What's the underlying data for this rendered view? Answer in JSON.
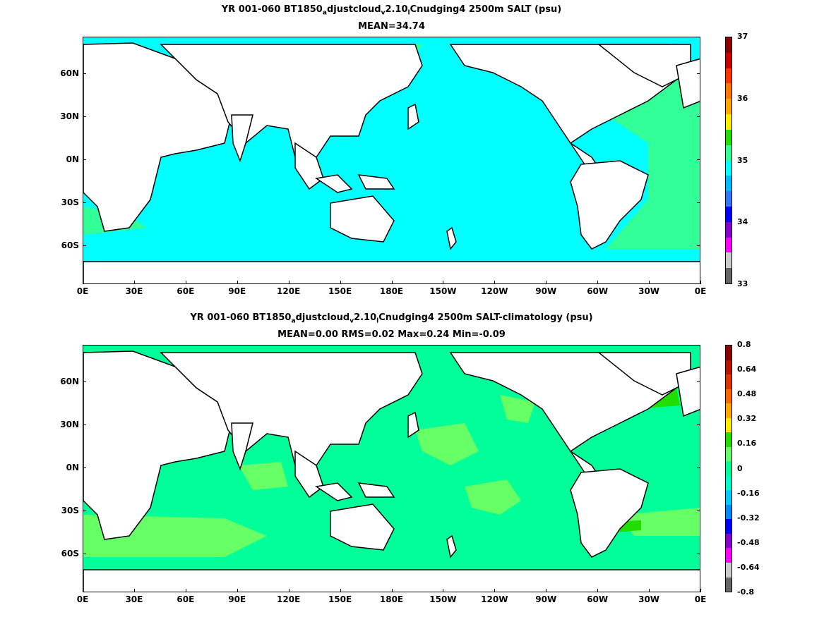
{
  "panels": [
    {
      "title_parts": [
        "YR 001-060 BT1850",
        "a",
        "djustcloud",
        "v",
        "2.10",
        "l",
        "Cnudging4 2500m SALT (psu)"
      ],
      "subtitle": "MEAN=34.74",
      "ocean_color": "#00ffff",
      "secondary_color": "#33ff99",
      "colorbar": {
        "colors": [
          "#8b0000",
          "#cc0000",
          "#ff3300",
          "#ff7700",
          "#ffaa00",
          "#ffee00",
          "#22dd00",
          "#33ff99",
          "#00ffff",
          "#00bbff",
          "#3377ff",
          "#0000ff",
          "#8800cc",
          "#ff00ff",
          "#cccccc",
          "#666666"
        ],
        "labels": [
          "37",
          "36",
          "35",
          "34",
          "33"
        ]
      }
    },
    {
      "title_parts": [
        "YR 001-060 BT1850",
        "a",
        "djustcloud",
        "v",
        "2.10",
        "l",
        "Cnudging4 2500m SALT-climatology (psu)"
      ],
      "subtitle": "MEAN=0.00   RMS=0.02   Max=0.24   Min=-0.09",
      "ocean_color": "#00ff99",
      "secondary_color": "#66ff66",
      "colorbar": {
        "colors": [
          "#8b0000",
          "#bb1100",
          "#dd3300",
          "#ff6600",
          "#ffaa00",
          "#ffee00",
          "#22dd00",
          "#66ff66",
          "#00ff99",
          "#00ffcc",
          "#00ccff",
          "#0088ff",
          "#0000ff",
          "#8800cc",
          "#ff00ff",
          "#cccccc",
          "#666666"
        ],
        "labels": [
          "0.8",
          "0.64",
          "0.48",
          "0.32",
          "0.16",
          "0",
          "-0.16",
          "-0.32",
          "-0.48",
          "-0.64",
          "-0.8"
        ]
      }
    }
  ],
  "axes": {
    "lat_labels": [
      "60N",
      "30N",
      "0N",
      "30S",
      "60S"
    ],
    "lon_labels": [
      "0E",
      "30E",
      "60E",
      "90E",
      "120E",
      "150E",
      "180E",
      "150W",
      "120W",
      "90W",
      "60W",
      "30W",
      "0E"
    ]
  }
}
